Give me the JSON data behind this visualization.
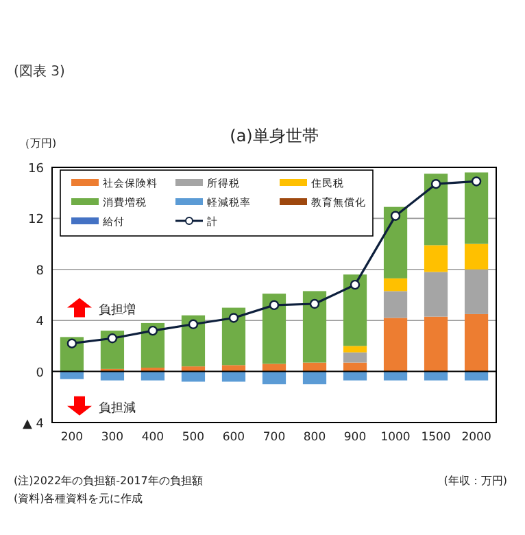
{
  "chart_data": {
    "type": "bar",
    "stacked": true,
    "title": "(a)単身世帯",
    "ylabel": "（万円)",
    "xlabel": "(年収：万円)",
    "annotations": [
      "(図表 3)",
      "負担増",
      "負担減",
      "(注)2022年の負担額-2017年の負担額",
      "(資料)各種資料を元に作成"
    ],
    "categories": [
      "200",
      "300",
      "400",
      "500",
      "600",
      "700",
      "800",
      "900",
      "1000",
      "1500",
      "2000"
    ],
    "ylim": [
      -4,
      16
    ],
    "yticks": [
      {
        "value": -4,
        "label": "▲ 4"
      },
      0,
      4,
      8,
      12,
      16
    ],
    "grid": "y",
    "legend": "top left",
    "series": [
      {
        "name": "社会保険料",
        "color": "#ed7d31",
        "values": [
          0,
          0.2,
          0.3,
          0.4,
          0.5,
          0.6,
          0.7,
          0.7,
          4.2,
          4.3,
          4.5
        ]
      },
      {
        "name": "所得税",
        "color": "#a5a5a5",
        "values": [
          0,
          0,
          0,
          0,
          0,
          0,
          0,
          0.8,
          2.1,
          3.5,
          3.5
        ]
      },
      {
        "name": "住民税",
        "color": "#ffc000",
        "values": [
          0,
          0,
          0,
          0,
          0,
          0,
          0,
          0.5,
          1.0,
          2.1,
          2.0
        ]
      },
      {
        "name": "消費増税",
        "color": "#70ad47",
        "values": [
          2.7,
          3.0,
          3.5,
          4.0,
          4.5,
          5.5,
          5.6,
          5.6,
          5.6,
          5.6,
          5.6
        ]
      },
      {
        "name": "軽減税率",
        "color": "#5b9bd5",
        "values": [
          -0.6,
          -0.7,
          -0.7,
          -0.8,
          -0.8,
          -1.0,
          -1.0,
          -0.7,
          -0.7,
          -0.7,
          -0.7
        ]
      },
      {
        "name": "教育無償化",
        "color": "#9e480e",
        "values": [
          0,
          0,
          0,
          0,
          0,
          0,
          0,
          0,
          0,
          0,
          0
        ]
      },
      {
        "name": "給付",
        "color": "#4472c4",
        "values": [
          0,
          0,
          0,
          0,
          0,
          0,
          0,
          0,
          0,
          0,
          0
        ]
      },
      {
        "name": "計",
        "type": "line",
        "color": "#0d1f3c",
        "marker": "circle",
        "values": [
          2.2,
          2.6,
          3.2,
          3.7,
          4.2,
          5.2,
          5.3,
          6.8,
          12.2,
          14.7,
          14.9
        ]
      }
    ]
  }
}
